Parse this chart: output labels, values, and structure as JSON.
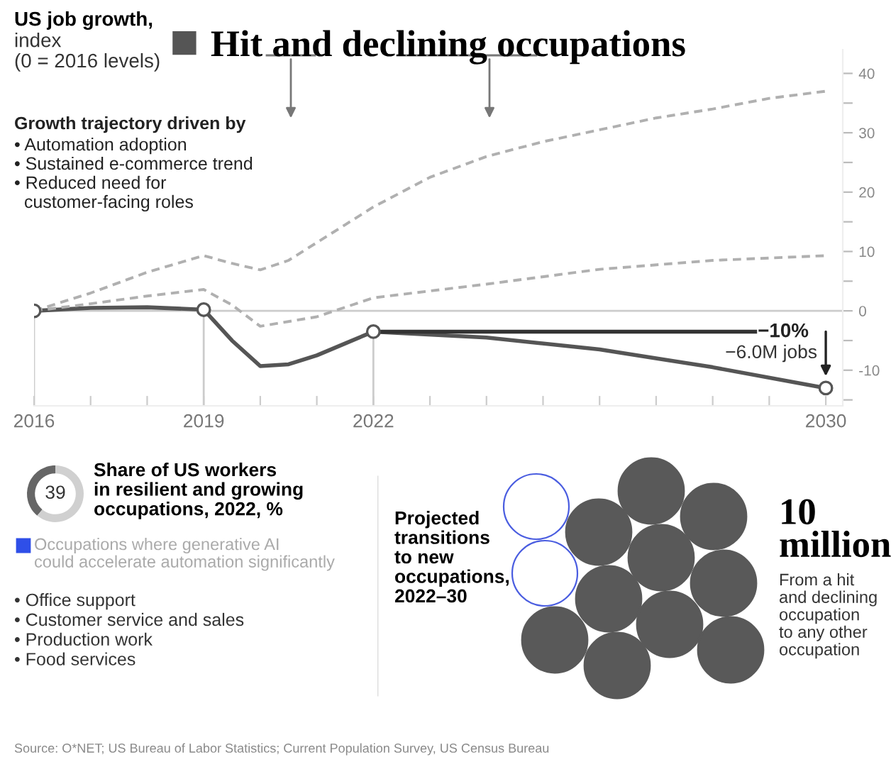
{
  "chart_data": [
    {
      "type": "line",
      "title": "US job growth,",
      "subtitle": "index\n(0 = 2016 levels)",
      "xlim": [
        2016,
        2030.3
      ],
      "xticks": [
        2016,
        {
          "value": 2017,
          "label": null
        },
        {
          "value": 2018,
          "label": null
        },
        2019,
        {
          "value": 2020,
          "label": null
        },
        {
          "value": 2021,
          "label": null
        },
        2022,
        {
          "value": 2023,
          "label": null
        },
        {
          "value": 2024,
          "label": null
        },
        {
          "value": 2025,
          "label": null
        },
        {
          "value": 2026,
          "label": null
        },
        {
          "value": 2027,
          "label": null
        },
        {
          "value": 2028,
          "label": null
        },
        {
          "value": 2029,
          "label": null
        },
        2030
      ],
      "ylim": [
        -16,
        44
      ],
      "yticks": [
        {
          "value": -15,
          "label": null
        },
        -10,
        {
          "value": -5,
          "label": null
        },
        0,
        {
          "value": 5,
          "label": null
        },
        10,
        {
          "value": 15,
          "label": null
        },
        20,
        {
          "value": 25,
          "label": null
        },
        30,
        {
          "value": 35,
          "label": null
        },
        40
      ],
      "grid": false,
      "legend": "top",
      "series": [
        {
          "name": "Hit and declining occupations",
          "color": "#555555",
          "line_style": "solid",
          "x": [
            2016,
            2017,
            2018,
            2019,
            2019.5,
            2020,
            2020.5,
            2021,
            2021.5,
            2022,
            2024,
            2026,
            2028,
            2030
          ],
          "values": [
            0,
            0.5,
            0.6,
            0.2,
            -5,
            -9.3,
            -9,
            -7.5,
            -5.5,
            -3.5,
            -4.5,
            -6.5,
            -9.5,
            -13
          ]
        },
        {
          "color": "#b0b0b0",
          "line_style": "dashed",
          "x": [
            2016,
            2017,
            2018,
            2019,
            2019.5,
            2020,
            2020.5,
            2021,
            2021.5,
            2022,
            2023,
            2024,
            2025,
            2026,
            2027,
            2028,
            2029,
            2030
          ],
          "values": [
            0,
            3,
            6.5,
            9.3,
            8,
            6.9,
            8.5,
            11.5,
            14.5,
            17.5,
            22.5,
            26,
            28.5,
            30.5,
            32.5,
            34,
            35.8,
            37
          ]
        },
        {
          "color": "#b0b0b0",
          "line_style": "dashed",
          "x": [
            2016,
            2017,
            2018,
            2019,
            2019.5,
            2020,
            2021,
            2022,
            2024,
            2026,
            2028,
            2030
          ],
          "values": [
            0,
            1.2,
            2.5,
            3.6,
            1,
            -2.6,
            -1,
            2.2,
            4.5,
            7,
            8.5,
            9.3
          ]
        },
        {
          "type": "scatter",
          "color": "#555555",
          "marker": "circle",
          "x": [
            2016,
            2019,
            2022,
            2030
          ],
          "values": [
            0,
            0.2,
            -3.5,
            -13
          ]
        },
        {
          "color": "#333333",
          "line_style": "solid",
          "x": [
            2022,
            2028.75
          ],
          "values": [
            -3.5,
            -3.5
          ]
        }
      ],
      "ref_lines": [
        {
          "axis": "y",
          "value": 0,
          "color": "#cccccc"
        },
        {
          "axis": "x",
          "value": 2016,
          "color": "#cccccc"
        },
        {
          "axis": "x",
          "value": 2019,
          "color": "#cccccc"
        },
        {
          "axis": "x",
          "value": 2022,
          "color": "#cccccc"
        }
      ],
      "annotations": [
        "Growth trajectory driven by",
        "• Automation adoption\n• Sustained e-commerce trend\n• Reduced need for\n  customer-facing roles",
        "−10%",
        "−6.0M jobs",
        "Source: O*NET; US Bureau of Labor Statistics; Current Population Survey, US Census Bureau"
      ]
    },
    {
      "type": "donut",
      "title": "Share of US workers\nin resilient and growing\noccupations, 2022, %",
      "categories": [
        null,
        null
      ],
      "values": [
        39,
        61
      ],
      "colors": [
        "#666666",
        "#d0d0d0"
      ],
      "value_labels": [
        "39",
        null
      ],
      "annotations": [
        "Occupations where generative AI\ncould accelerate automation significantly",
        "• Office support\n• Customer service and sales\n• Production work\n• Food services"
      ]
    },
    {
      "type": "other",
      "title": "Projected\ntransitions\nto new\noccupations,\n2022–30",
      "annotations": [
        "10\nmillion",
        "From a hit\nand declining\noccupation\nto any other\noccupation"
      ]
    }
  ]
}
